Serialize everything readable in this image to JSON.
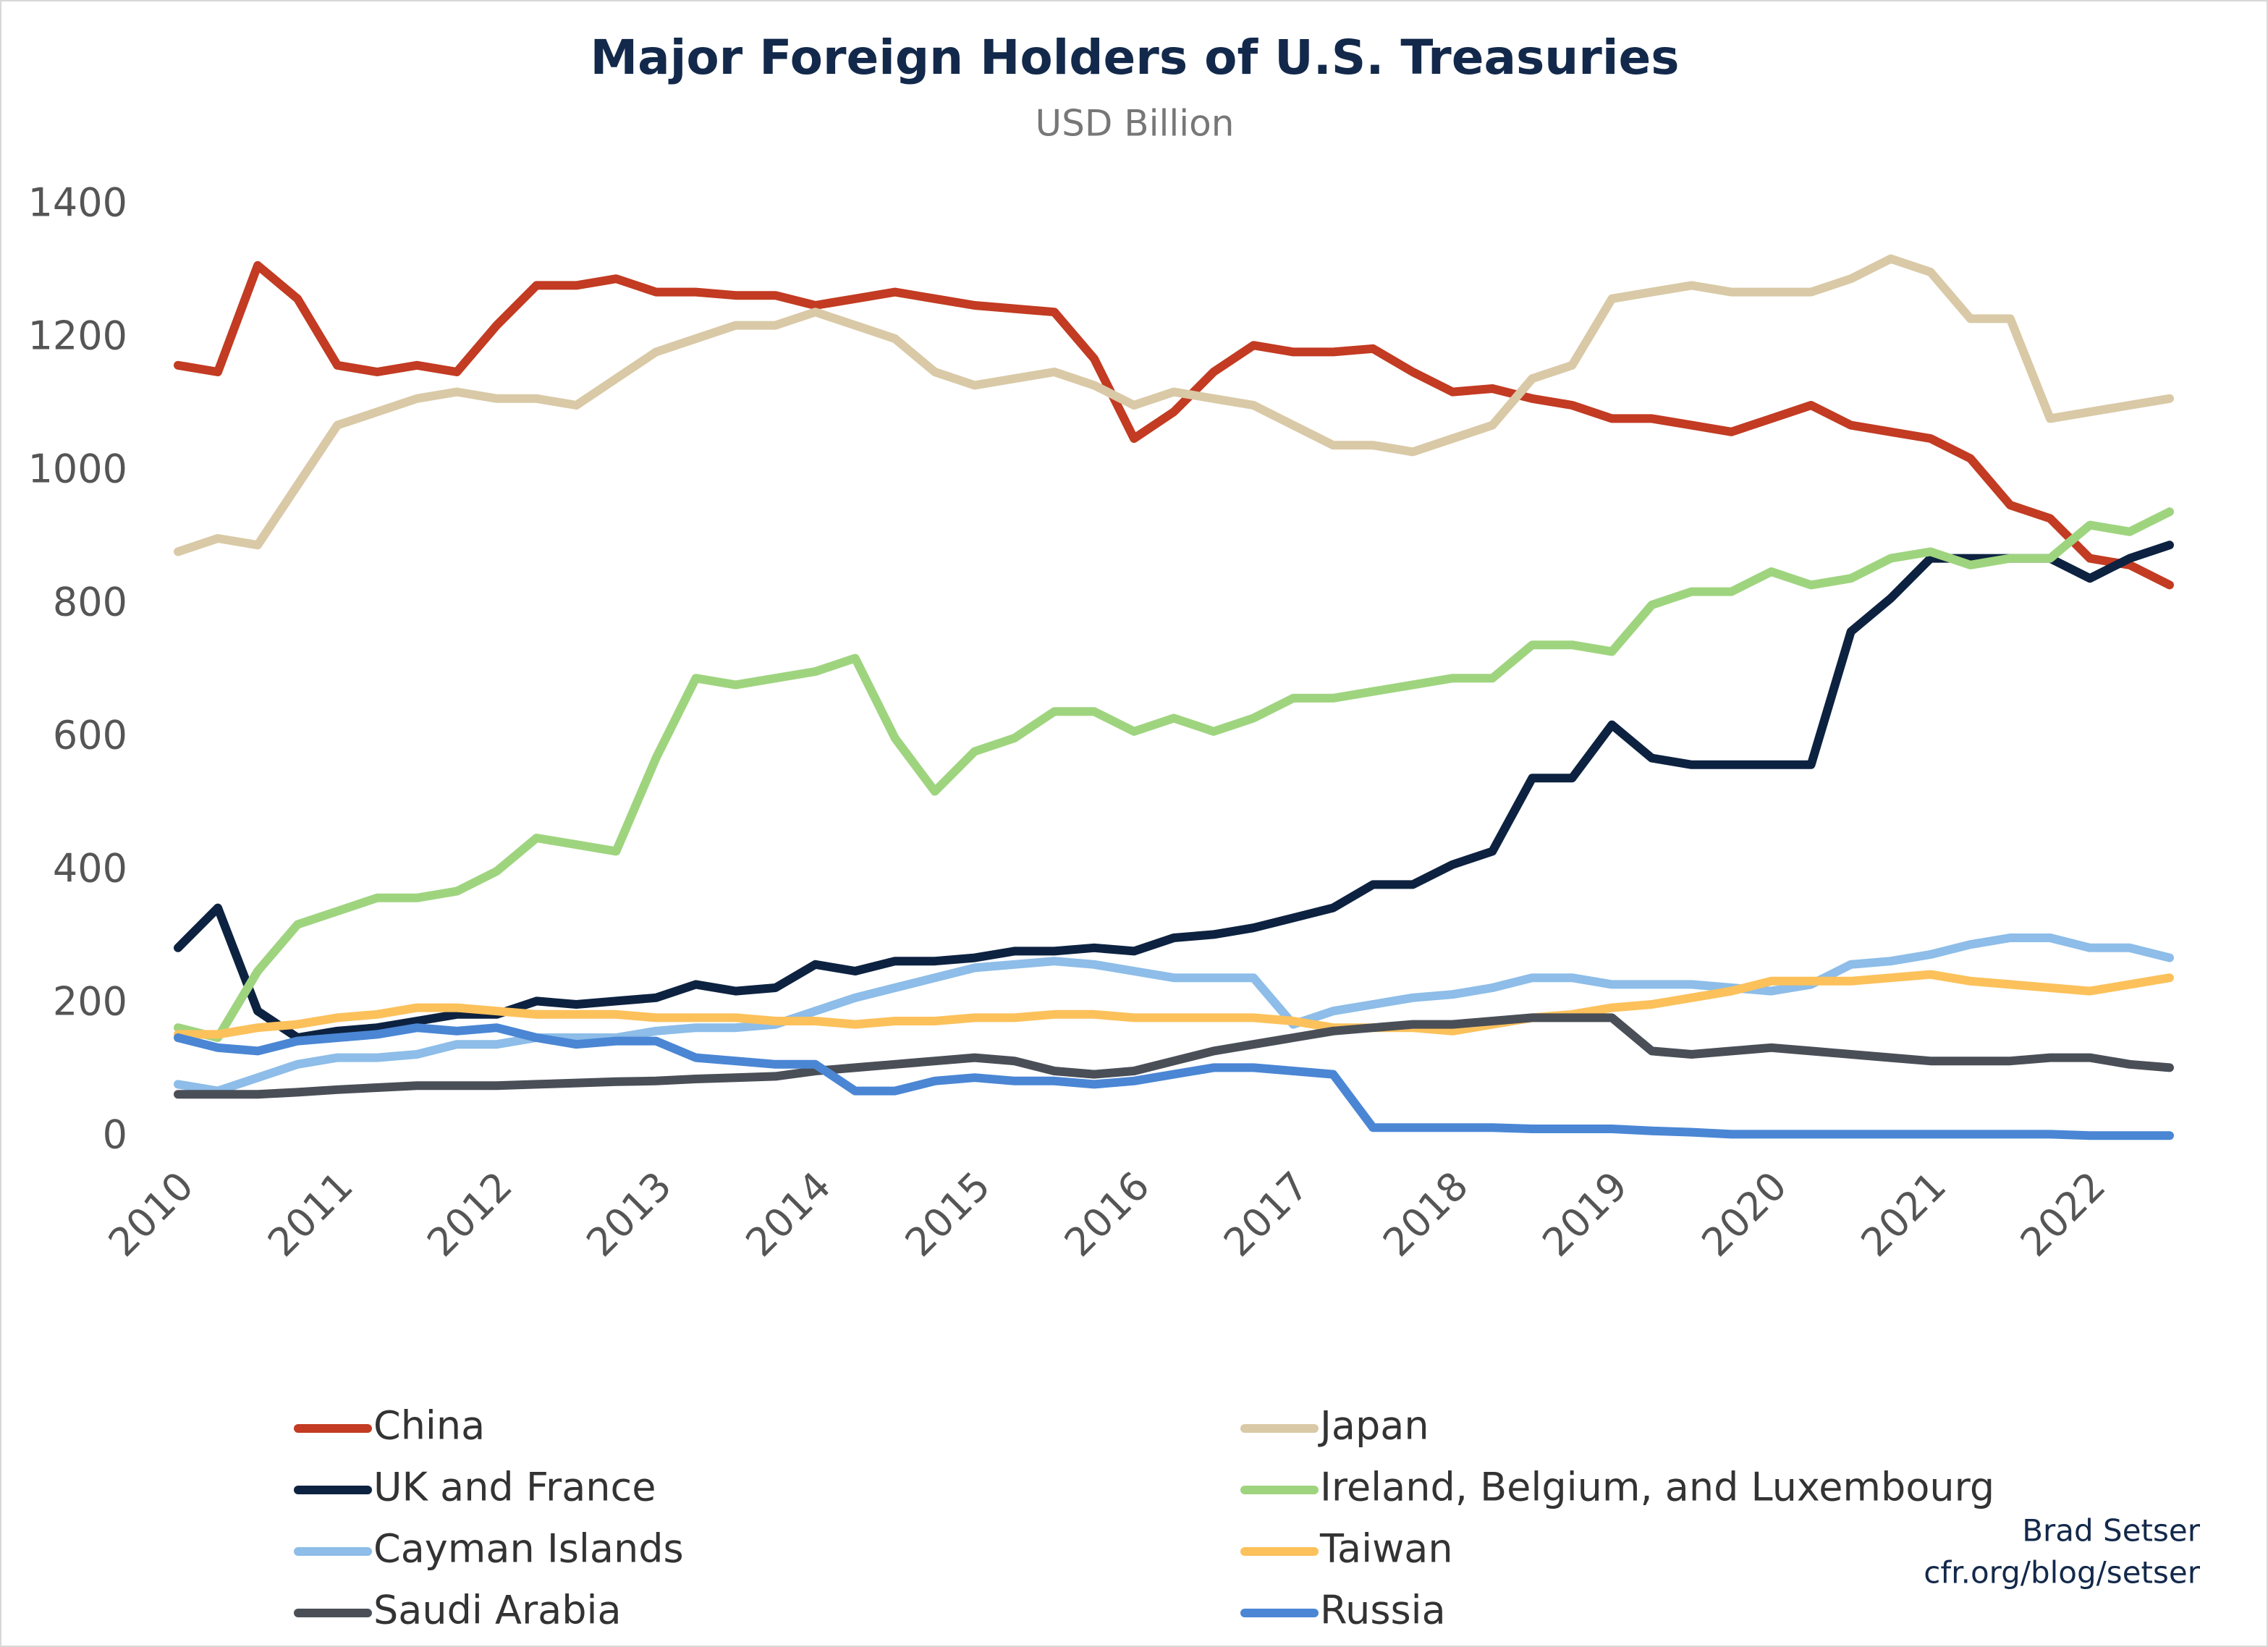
{
  "chart_data": {
    "type": "line",
    "title": "Major Foreign Holders of U.S. Treasuries",
    "subtitle": "USD Billion",
    "source": [
      "Brad Setser",
      "cfr.org/blog/setser"
    ],
    "xlim": [
      2010,
      2022.6
    ],
    "xticks": [
      2010,
      2011,
      2012,
      2013,
      2014,
      2015,
      2016,
      2017,
      2018,
      2019,
      2020,
      2021,
      2022
    ],
    "ylim": [
      0,
      1400
    ],
    "yticks": [
      0,
      200,
      400,
      600,
      800,
      1000,
      1200,
      1400
    ],
    "grid": false,
    "x": [
      2010,
      2010.25,
      2010.5,
      2010.75,
      2011,
      2011.25,
      2011.5,
      2011.75,
      2012,
      2012.25,
      2012.5,
      2012.75,
      2013,
      2013.25,
      2013.5,
      2013.75,
      2014,
      2014.25,
      2014.5,
      2014.75,
      2015,
      2015.25,
      2015.5,
      2015.75,
      2016,
      2016.25,
      2016.5,
      2016.75,
      2017,
      2017.25,
      2017.5,
      2017.75,
      2018,
      2018.25,
      2018.5,
      2018.75,
      2019,
      2019.25,
      2019.5,
      2019.75,
      2020,
      2020.25,
      2020.5,
      2020.75,
      2021,
      2021.25,
      2021.5,
      2021.75,
      2022,
      2022.25,
      2022.5
    ],
    "series": [
      {
        "name": "China",
        "color": "#c23b22",
        "values": [
          1160,
          1150,
          1310,
          1260,
          1160,
          1150,
          1160,
          1150,
          1220,
          1280,
          1280,
          1290,
          1270,
          1270,
          1265,
          1265,
          1250,
          1260,
          1270,
          1260,
          1250,
          1245,
          1240,
          1170,
          1050,
          1090,
          1150,
          1190,
          1180,
          1180,
          1185,
          1150,
          1120,
          1125,
          1110,
          1100,
          1080,
          1080,
          1070,
          1060,
          1080,
          1100,
          1070,
          1060,
          1050,
          1020,
          950,
          930,
          870,
          860,
          830
        ]
      },
      {
        "name": "Japan",
        "color": "#d9c9a6",
        "values": [
          880,
          900,
          890,
          980,
          1070,
          1090,
          1110,
          1120,
          1110,
          1110,
          1100,
          1140,
          1180,
          1200,
          1220,
          1220,
          1240,
          1220,
          1200,
          1150,
          1130,
          1140,
          1150,
          1130,
          1100,
          1120,
          1110,
          1100,
          1070,
          1040,
          1040,
          1030,
          1050,
          1070,
          1140,
          1160,
          1260,
          1270,
          1280,
          1270,
          1270,
          1270,
          1290,
          1320,
          1300,
          1230,
          1230,
          1080,
          1090,
          1100,
          1110
        ]
      },
      {
        "name": "UK and France",
        "color": "#0d2240",
        "values": [
          285,
          345,
          190,
          150,
          160,
          165,
          175,
          185,
          185,
          205,
          200,
          205,
          210,
          230,
          220,
          225,
          260,
          250,
          265,
          265,
          270,
          280,
          280,
          285,
          280,
          300,
          305,
          315,
          330,
          345,
          380,
          380,
          410,
          430,
          540,
          540,
          620,
          570,
          560,
          560,
          560,
          560,
          760,
          810,
          870,
          870,
          870,
          870,
          840,
          870,
          890
        ]
      },
      {
        "name": "Ireland, Belgium, and Luxembourg",
        "color": "#9fd47f",
        "values": [
          165,
          150,
          250,
          320,
          340,
          360,
          360,
          370,
          400,
          450,
          440,
          430,
          570,
          690,
          680,
          690,
          700,
          720,
          600,
          520,
          580,
          600,
          640,
          640,
          610,
          630,
          610,
          630,
          660,
          660,
          670,
          680,
          690,
          690,
          740,
          740,
          730,
          800,
          820,
          820,
          850,
          830,
          840,
          870,
          880,
          860,
          870,
          870,
          920,
          910,
          940
        ]
      },
      {
        "name": "Cayman Islands",
        "color": "#8dbde8",
        "values": [
          80,
          70,
          90,
          110,
          120,
          120,
          125,
          140,
          140,
          150,
          150,
          150,
          160,
          165,
          165,
          170,
          190,
          210,
          225,
          240,
          255,
          260,
          265,
          260,
          250,
          240,
          240,
          240,
          170,
          190,
          200,
          210,
          215,
          225,
          240,
          240,
          230,
          230,
          230,
          225,
          220,
          230,
          260,
          265,
          275,
          290,
          300,
          300,
          285,
          285,
          270
        ]
      },
      {
        "name": "Taiwan",
        "color": "#fcc15b",
        "values": [
          155,
          155,
          165,
          170,
          180,
          185,
          195,
          195,
          190,
          185,
          185,
          185,
          180,
          180,
          180,
          175,
          175,
          170,
          175,
          175,
          180,
          180,
          185,
          185,
          180,
          180,
          180,
          180,
          175,
          165,
          165,
          165,
          160,
          170,
          180,
          185,
          195,
          200,
          210,
          220,
          235,
          235,
          235,
          240,
          245,
          235,
          230,
          225,
          220,
          230,
          240
        ]
      },
      {
        "name": "Saudi Arabia",
        "color": "#4a4f57",
        "values": [
          65,
          65,
          65,
          68,
          72,
          75,
          78,
          78,
          78,
          80,
          82,
          84,
          85,
          88,
          90,
          92,
          100,
          105,
          110,
          115,
          120,
          115,
          100,
          95,
          100,
          115,
          130,
          140,
          150,
          160,
          165,
          170,
          170,
          175,
          180,
          180,
          180,
          130,
          125,
          130,
          135,
          130,
          125,
          120,
          115,
          115,
          115,
          120,
          120,
          110,
          105
        ]
      },
      {
        "name": "Russia",
        "color": "#4a86d4",
        "values": [
          150,
          135,
          130,
          145,
          150,
          155,
          165,
          160,
          165,
          150,
          140,
          145,
          145,
          120,
          115,
          110,
          110,
          70,
          70,
          85,
          90,
          85,
          85,
          80,
          85,
          95,
          105,
          105,
          100,
          95,
          15,
          15,
          15,
          15,
          13,
          13,
          13,
          10,
          8,
          5,
          5,
          5,
          5,
          5,
          5,
          5,
          5,
          5,
          3,
          3,
          3
        ]
      }
    ]
  }
}
